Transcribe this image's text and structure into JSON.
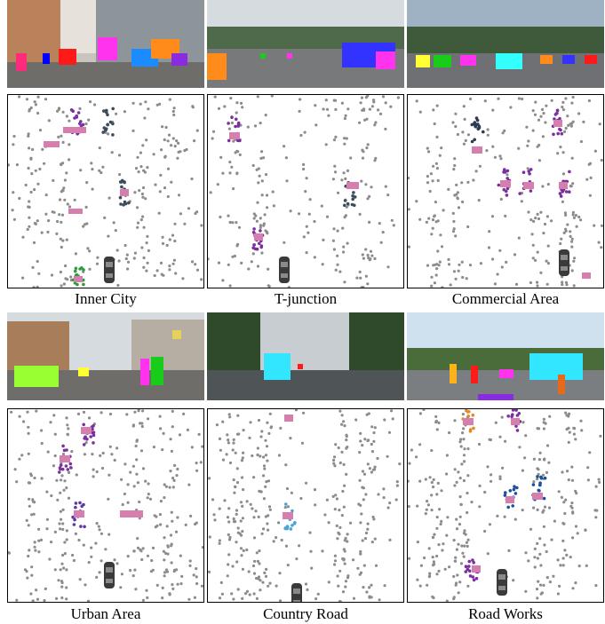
{
  "panels": [
    {
      "id": "p1",
      "caption": "Inner City",
      "cluster_colors": [
        "#7b2fa0",
        "#3a4b5c",
        "#2e9b3a"
      ],
      "box_color": "#d67fae",
      "photo_palette": [
        "#8a8580",
        "#b9b3ae",
        "#e0dcd6"
      ],
      "car_present": true
    },
    {
      "id": "p2",
      "caption": "T-junction",
      "cluster_colors": [
        "#7b2fa0",
        "#3a4b5c"
      ],
      "box_color": "#d67fae",
      "photo_palette": [
        "#5c6a55",
        "#8e9aa3",
        "#c9d0d6"
      ],
      "car_present": true
    },
    {
      "id": "p3",
      "caption": "Commercial Area",
      "cluster_colors": [
        "#2e3b55",
        "#7b2fa0",
        "#3a4b5c"
      ],
      "box_color": "#d67fae",
      "photo_palette": [
        "#6b6a6e",
        "#9aa4ad",
        "#d3d8dc"
      ],
      "car_present": true
    },
    {
      "id": "p4",
      "caption": "Urban Area",
      "cluster_colors": [
        "#7b2fa0",
        "#5d3aa0"
      ],
      "box_color": "#d67fae",
      "photo_palette": [
        "#7a6c5a",
        "#a8a39b",
        "#dfe3e6"
      ],
      "car_present": true
    },
    {
      "id": "p5",
      "caption": "Country Road",
      "cluster_colors": [
        "#7b2fa0",
        "#4aa3d6"
      ],
      "box_color": "#d67fae",
      "photo_palette": [
        "#2f4a2b",
        "#6d7a6a",
        "#c7cdd1"
      ],
      "car_present": true
    },
    {
      "id": "p6",
      "caption": "Road Works",
      "cluster_colors": [
        "#1f4e9b",
        "#e08a20",
        "#7b2fa0"
      ],
      "box_color": "#d67fae",
      "photo_palette": [
        "#4a6b3a",
        "#9fa8ad",
        "#cfe0ee"
      ],
      "car_present": true
    }
  ]
}
